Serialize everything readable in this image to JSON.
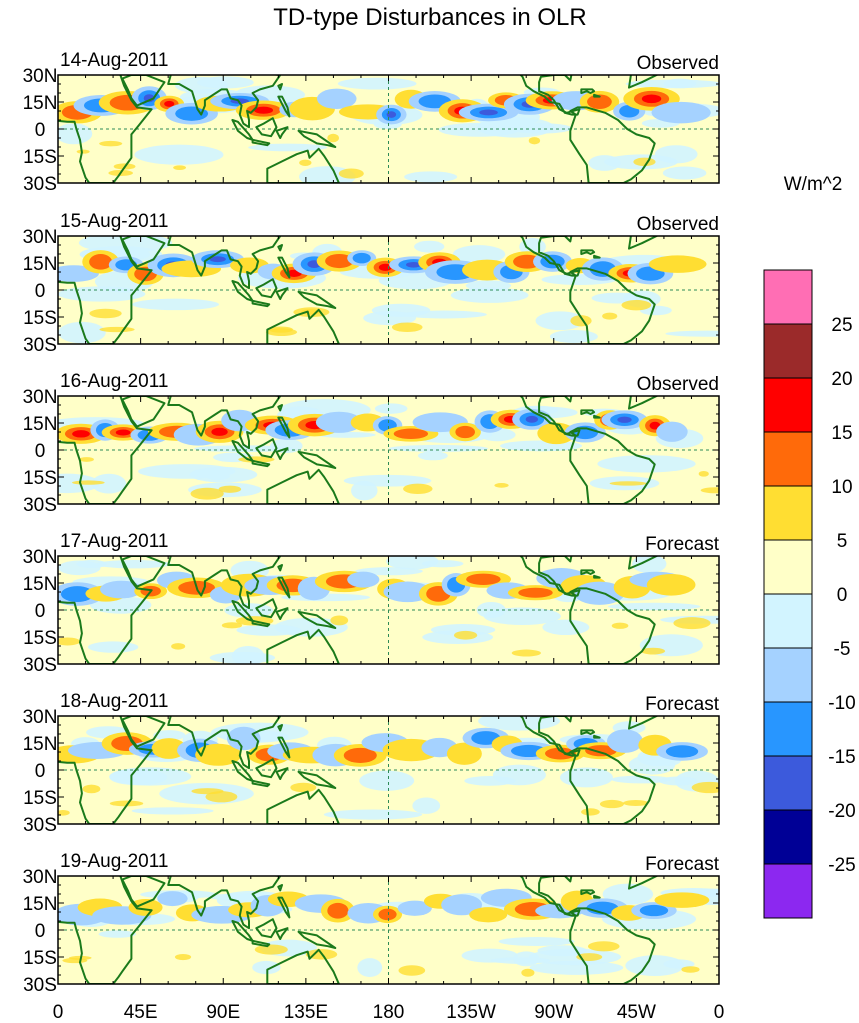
{
  "title": "TD-type Disturbances in OLR",
  "colorbar": {
    "unit": "W/m^2",
    "labels": [
      "25",
      "20",
      "15",
      "10",
      "5",
      "0",
      "-5",
      "-10",
      "-15",
      "-20",
      "-25"
    ],
    "colors": [
      "#ff6eb4",
      "#9b2a2a",
      "#ff0000",
      "#ff6a0a",
      "#ffde32",
      "#ffffc8",
      "#d2f4ff",
      "#a5d2ff",
      "#2896ff",
      "#3c5adc",
      "#000096",
      "#8c28f0"
    ]
  },
  "axes": {
    "lat_labels": [
      "30N",
      "15N",
      "0",
      "15S",
      "30S"
    ],
    "lon_labels": [
      "0",
      "45E",
      "90E",
      "135E",
      "180",
      "135W",
      "90W",
      "45W",
      "0"
    ]
  },
  "panels": [
    {
      "date": "14-Aug-2011",
      "type": "Observed",
      "amp": 1.0,
      "seed": 3
    },
    {
      "date": "15-Aug-2011",
      "type": "Observed",
      "amp": 1.0,
      "seed": 11
    },
    {
      "date": "16-Aug-2011",
      "type": "Observed",
      "amp": 0.95,
      "seed": 19
    },
    {
      "date": "17-Aug-2011",
      "type": "Forecast",
      "amp": 0.8,
      "seed": 27
    },
    {
      "date": "18-Aug-2011",
      "type": "Forecast",
      "amp": 0.6,
      "seed": 35
    },
    {
      "date": "19-Aug-2011",
      "type": "Forecast",
      "amp": 0.45,
      "seed": 43
    }
  ],
  "colors": {
    "coastline": "#1b7a1b",
    "equator": "#2e8b57"
  }
}
